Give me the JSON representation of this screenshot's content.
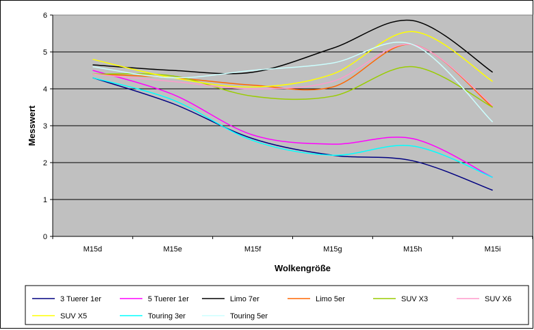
{
  "chart_data": {
    "type": "line",
    "xlabel": "Wolkengröße",
    "ylabel": "Messwert",
    "categories": [
      "M15d",
      "M15e",
      "M15f",
      "M15g",
      "M15h",
      "M15i"
    ],
    "ylim": [
      0,
      6
    ],
    "yticks": [
      "0",
      "1",
      "2",
      "3",
      "4",
      "5",
      "6"
    ],
    "grid": true,
    "legend_position": "bottom",
    "plot_background": "#c0c0c0",
    "series": [
      {
        "name": "3 Tuerer 1er",
        "color": "#000080",
        "values": [
          4.3,
          3.6,
          2.65,
          2.2,
          2.05,
          1.25
        ]
      },
      {
        "name": "5 Tuerer 1er",
        "color": "#ff00ff",
        "values": [
          4.5,
          3.85,
          2.75,
          2.5,
          2.65,
          1.6
        ]
      },
      {
        "name": "Limo 7er",
        "color": "#000000",
        "values": [
          4.65,
          4.5,
          4.45,
          5.1,
          5.85,
          4.45
        ]
      },
      {
        "name": "Limo 5er",
        "color": "#ff6600",
        "values": [
          4.4,
          4.3,
          4.1,
          4.05,
          5.2,
          3.5
        ]
      },
      {
        "name": "SUV X3",
        "color": "#99cc00",
        "values": [
          4.4,
          4.35,
          3.8,
          3.8,
          4.6,
          3.5
        ]
      },
      {
        "name": "SUV X6",
        "color": "#ff99cc",
        "values": [
          4.4,
          4.2,
          4.0,
          4.2,
          5.2,
          3.55
        ]
      },
      {
        "name": "SUV X5",
        "color": "#ffff00",
        "values": [
          4.8,
          4.3,
          4.05,
          4.4,
          5.55,
          4.2
        ]
      },
      {
        "name": "Touring 3er",
        "color": "#00ffff",
        "values": [
          4.3,
          3.7,
          2.6,
          2.2,
          2.45,
          1.6
        ]
      },
      {
        "name": "Touring 5er",
        "color": "#ccffff",
        "values": [
          4.6,
          4.3,
          4.5,
          4.7,
          5.2,
          3.1
        ]
      }
    ]
  }
}
